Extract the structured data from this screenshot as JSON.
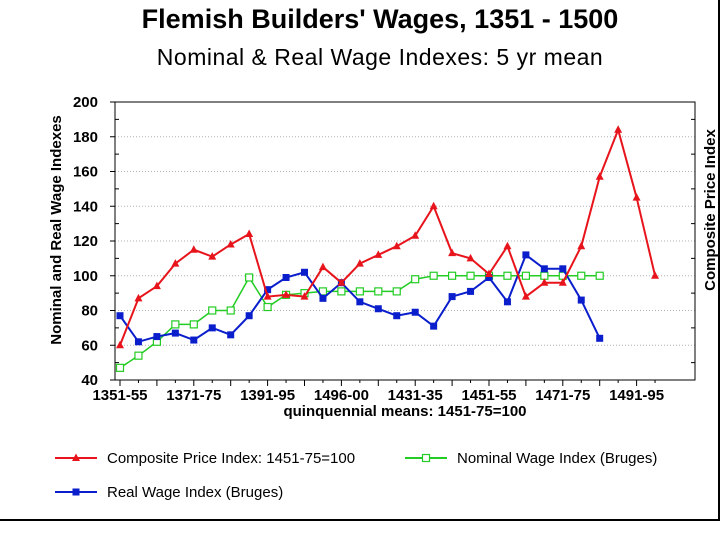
{
  "chart_data": {
    "type": "line",
    "title": "Flemish Builders' Wages, 1351 - 1500",
    "subtitle": "Nominal & Real Wage Indexes: 5 yr mean",
    "xlabel": "quinquennial means: 1451-75=100",
    "ylabel": "Nominal and Real Wage Indexes",
    "y2label": "Composite Price Index",
    "ylim": [
      40,
      200
    ],
    "yticks": [
      40,
      60,
      80,
      100,
      120,
      140,
      160,
      180,
      200
    ],
    "x_tick_labels": [
      "1351-55",
      "1371-75",
      "1391-95",
      "1496-00",
      "1431-35",
      "1451-55",
      "1471-75",
      "1491-95"
    ],
    "grid": true,
    "legend_position": "bottom",
    "series": [
      {
        "name": "Composite Price Index: 1451-75=100",
        "color": "#e8141c",
        "marker": "triangle",
        "values": [
          60,
          87,
          94,
          107,
          115,
          111,
          118,
          124,
          88,
          89,
          88,
          105,
          96,
          107,
          112,
          117,
          123,
          140,
          113,
          110,
          101,
          117,
          88,
          96,
          96,
          117,
          157,
          184,
          145,
          100
        ]
      },
      {
        "name": "Nominal Wage Index (Bruges)",
        "color": "#22cc22",
        "marker": "open-square",
        "values": [
          47,
          54,
          62,
          72,
          72,
          80,
          80,
          99,
          82,
          89,
          90,
          91,
          91,
          91,
          91,
          91,
          98,
          100,
          100,
          100,
          100,
          100,
          100,
          100,
          100,
          100,
          100
        ]
      },
      {
        "name": "Real Wage Index (Bruges)",
        "color": "#0a1ecc",
        "marker": "square",
        "values": [
          77,
          62,
          65,
          67,
          63,
          70,
          66,
          77,
          92,
          99,
          102,
          87,
          96,
          85,
          81,
          77,
          79,
          71,
          88,
          91,
          99,
          85,
          112,
          104,
          104,
          86,
          64
        ]
      }
    ]
  }
}
